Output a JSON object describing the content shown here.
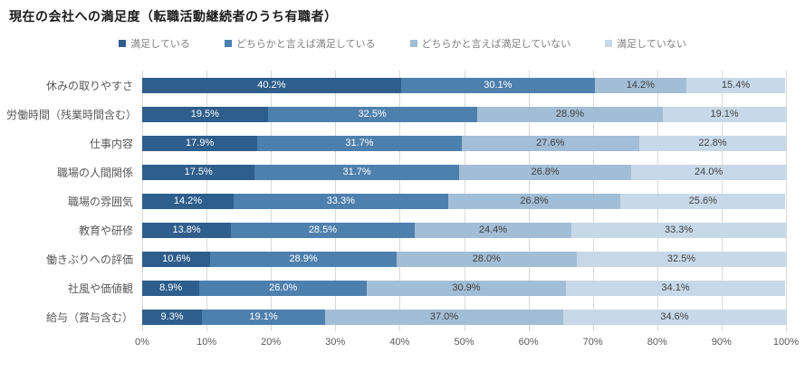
{
  "title": "現在の会社への満足度（転職活動継続者のうち有職者）",
  "chart_data": {
    "type": "bar",
    "variant": "horizontal-stacked-100pct",
    "title": "現在の会社への満足度（転職活動継続者のうち有職者）",
    "legend_position": "top",
    "grid": true,
    "xlim": [
      0,
      100
    ],
    "x_ticks": [
      "0%",
      "10%",
      "20%",
      "30%",
      "40%",
      "50%",
      "60%",
      "70%",
      "80%",
      "90%",
      "100%"
    ],
    "gridline_color": "#d9d9d9",
    "axis_text_color": "#595959",
    "category_text_color": "#595959",
    "legend_text_color": "#7f7f7f",
    "categories": [
      "休みの取りやすさ",
      "労働時間（残業時間含む）",
      "仕事内容",
      "職場の人間関係",
      "職場の雰囲気",
      "教育や研修",
      "働きぶりへの評価",
      "社風や価値観",
      "給与（賞与含む）"
    ],
    "series": [
      {
        "name": "満足している",
        "color": "#2e5e8c",
        "label_color": "#ffffff",
        "values": [
          40.2,
          19.5,
          17.9,
          17.5,
          14.2,
          13.8,
          10.6,
          8.9,
          9.3
        ],
        "labels": [
          "40.2%",
          "19.5%",
          "17.9%",
          "17.5%",
          "14.2%",
          "13.8%",
          "10.6%",
          "8.9%",
          "9.3%"
        ]
      },
      {
        "name": "どちらかと言えば満足している",
        "color": "#4e80ae",
        "label_color": "#ffffff",
        "values": [
          30.1,
          32.5,
          31.7,
          31.7,
          33.3,
          28.5,
          28.9,
          26.0,
          19.1
        ],
        "labels": [
          "30.1%",
          "32.5%",
          "31.7%",
          "31.7%",
          "33.3%",
          "28.5%",
          "28.9%",
          "26.0%",
          "19.1%"
        ]
      },
      {
        "name": "どちらかと言えば満足していない",
        "color": "#a2bdd6",
        "label_color": "#404040",
        "values": [
          14.2,
          28.9,
          27.6,
          26.8,
          26.8,
          24.4,
          28.0,
          30.9,
          37.0
        ],
        "labels": [
          "14.2%",
          "28.9%",
          "27.6%",
          "26.8%",
          "26.8%",
          "24.4%",
          "28.0%",
          "30.9%",
          "37.0%"
        ]
      },
      {
        "name": "満足していない",
        "color": "#c7d9e8",
        "label_color": "#404040",
        "values": [
          15.4,
          19.1,
          22.8,
          24.0,
          25.6,
          33.3,
          32.5,
          34.1,
          34.6
        ],
        "labels": [
          "15.4%",
          "19.1%",
          "22.8%",
          "24.0%",
          "25.6%",
          "33.3%",
          "32.5%",
          "34.1%",
          "34.6%"
        ]
      }
    ]
  }
}
